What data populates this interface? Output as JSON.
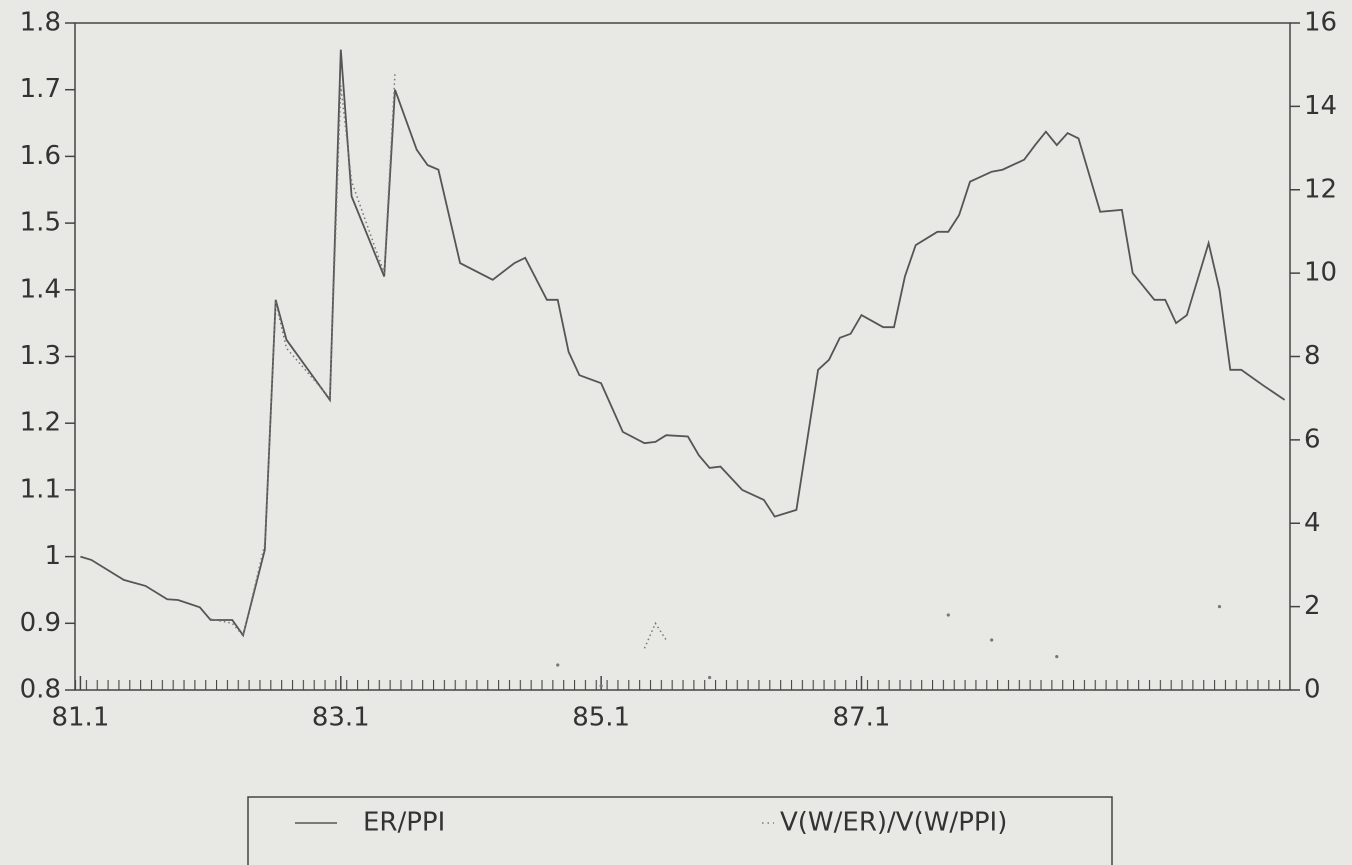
{
  "chart_data": {
    "type": "line",
    "x": [
      0,
      1,
      4,
      6,
      8,
      9,
      11,
      12,
      14,
      15,
      17,
      18,
      19,
      23,
      24,
      25,
      28,
      29,
      31,
      32,
      33,
      35,
      38,
      40,
      41,
      43,
      44,
      45,
      46,
      48,
      50,
      52,
      53,
      54,
      56,
      57,
      58,
      59,
      61,
      63,
      64,
      66,
      68,
      69,
      70,
      71,
      72,
      74,
      75,
      76,
      77,
      79,
      80,
      81,
      82,
      84,
      85,
      87,
      88,
      89,
      90,
      91,
      92,
      94,
      96,
      97,
      99,
      100,
      101,
      102,
      104,
      105,
      106,
      107,
      109,
      111
    ],
    "xlim": [
      -0.5,
      111.5
    ],
    "xticks": [
      {
        "value": 0,
        "label": "81.1"
      },
      {
        "value": 24,
        "label": "83.1"
      },
      {
        "value": 48,
        "label": "85.1"
      },
      {
        "value": 72,
        "label": "87.1"
      }
    ],
    "ylim": [
      0.8,
      1.8
    ],
    "yticks": [
      0.8,
      0.9,
      1,
      1.1,
      1.2,
      1.3,
      1.4,
      1.5,
      1.6,
      1.7,
      1.8
    ],
    "y2lim": [
      0,
      16
    ],
    "y2ticks": [
      0,
      2,
      4,
      6,
      8,
      10,
      12,
      14,
      16
    ],
    "series": [
      {
        "name": "ER/PPI",
        "color": "#555555",
        "style": "solid",
        "values": [
          1.0,
          0.995,
          0.965,
          0.956,
          0.936,
          0.935,
          0.924,
          0.905,
          0.905,
          0.882,
          1.01,
          1.385,
          1.325,
          1.235,
          1.76,
          1.54,
          1.42,
          1.7,
          1.61,
          1.587,
          1.58,
          1.44,
          1.415,
          1.44,
          1.448,
          1.385,
          1.385,
          1.307,
          1.272,
          1.26,
          1.187,
          1.17,
          1.172,
          1.182,
          1.18,
          1.152,
          1.133,
          1.135,
          1.1,
          1.085,
          1.06,
          1.07,
          1.28,
          1.295,
          1.328,
          1.334,
          1.362,
          1.344,
          1.344,
          1.42,
          1.467,
          1.487,
          1.487,
          1.512,
          1.562,
          1.577,
          1.58,
          1.595,
          1.617,
          1.637,
          1.617,
          1.635,
          1.627,
          1.517,
          1.52,
          1.425,
          1.385,
          1.385,
          1.35,
          1.362,
          1.47,
          1.4,
          1.28,
          1.28,
          1.257,
          1.235
        ]
      },
      {
        "name": "V(W/ER)/V(W/PPI)",
        "color": "#777777",
        "style": "dotted",
        "axis": "y2",
        "values": [
          null,
          null,
          null,
          null,
          null,
          null,
          null,
          1.7,
          1.6,
          1.3,
          3.5,
          9.3,
          8.2,
          7.0,
          14.5,
          12.2,
          10.0,
          14.8,
          null,
          null,
          null,
          null,
          null,
          null,
          null,
          null,
          0.6,
          null,
          null,
          0.1,
          null,
          1.0,
          1.6,
          1.2,
          null,
          null,
          0.3,
          null,
          null,
          null,
          null,
          null,
          null,
          null,
          null,
          null,
          null,
          null,
          null,
          null,
          null,
          null,
          1.8,
          null,
          null,
          1.2,
          null,
          null,
          null,
          null,
          0.8,
          null,
          null,
          null,
          null,
          null,
          null,
          null,
          null,
          null,
          null,
          2.0,
          null,
          null,
          null,
          null
        ]
      }
    ]
  }
}
